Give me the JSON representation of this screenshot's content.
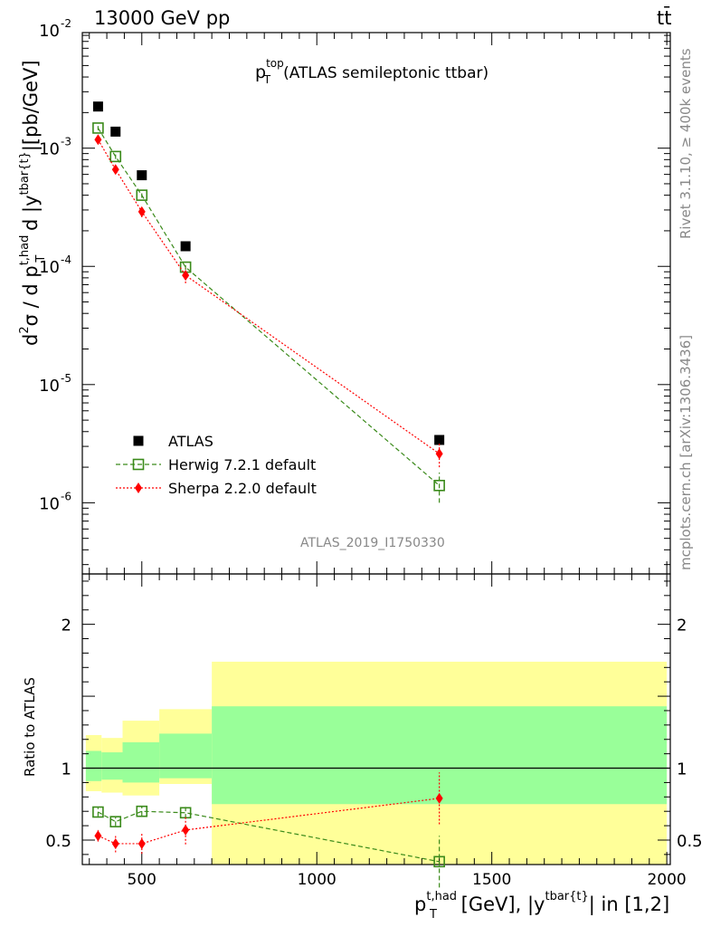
{
  "header": {
    "energy_label": "13000 GeV pp",
    "process_label": "tt̄"
  },
  "side_text": {
    "rivet": "Rivet 3.1.10, ≥ 400k events",
    "mcplots": "mcplots.cern.ch [arXiv:1306.3436]"
  },
  "chart_data": [
    {
      "type": "scatter",
      "title_main": "p",
      "title_sup": "top",
      "title_sub": "T",
      "title_rest": "(ATLAS semileptonic ttbar)",
      "analysis_label": "ATLAS_2019_I1750330",
      "yscale": "log",
      "ylim": [
        2.5e-07,
        0.0095
      ],
      "xlim": [
        330,
        2010
      ],
      "ytick_labels": [
        "10",
        "10",
        "10",
        "10",
        "10"
      ],
      "ytick_exponents": [
        "-6",
        "-5",
        "-4",
        "-3",
        "-2"
      ],
      "ylabel": {
        "d2": "d",
        "sup2": "2",
        "sigma_rest": "σ /  d p",
        "sup_thad": "t,had",
        "sub_T": "T",
        "mid": " d  |y",
        "sup_tbar": "tbar{t}",
        "end": "|[pb/GeV]"
      },
      "legend": {
        "position": "bottom-left",
        "entries": [
          "ATLAS",
          "Herwig 7.2.1 default",
          "Sherpa 2.2.0 default"
        ]
      },
      "series": [
        {
          "name": "ATLAS",
          "color": "#000000",
          "marker": "square",
          "x": [
            375,
            425,
            500,
            625,
            1350
          ],
          "y": [
            0.00225,
            0.00138,
            0.00059,
            0.000148,
            3.4e-06
          ]
        },
        {
          "name": "Herwig 7.2.1 default",
          "color": "#3a8a1a",
          "marker": "open-square",
          "x": [
            375,
            425,
            500,
            625,
            1350
          ],
          "y": [
            0.00148,
            0.00085,
            0.0004,
            9.85e-05,
            1.4e-06
          ],
          "yerr": [
            6e-05,
            4e-05,
            2e-05,
            5e-06,
            4e-07
          ]
        },
        {
          "name": "Sherpa 2.2.0 default",
          "color": "#ff0000",
          "marker": "diamond",
          "x": [
            375,
            425,
            500,
            625,
            1350
          ],
          "y": [
            0.00118,
            0.00066,
            0.00029,
            8.4e-05,
            2.6e-06
          ],
          "yerr": [
            8e-05,
            5e-05,
            3e-05,
            1.2e-05,
            6e-07
          ]
        }
      ]
    },
    {
      "type": "scatter",
      "ylabel": "Ratio to ATLAS",
      "xlabel": {
        "p": "p",
        "sup": "t,had",
        "sub": "T",
        "mid": " [GeV], |y",
        "sup2": "tbar{t}",
        "end": "| in [1,2]"
      },
      "xlim": [
        330,
        2010
      ],
      "ylim": [
        0.33,
        2.35
      ],
      "xtick_labels": [
        "500",
        "1000",
        "1500",
        "2000"
      ],
      "xtick_values": [
        500,
        1000,
        1500,
        2000
      ],
      "ytick_labels": [
        "0.5",
        "1",
        "2"
      ],
      "ytick_values": [
        0.5,
        1,
        2
      ],
      "bands": [
        {
          "x0": 340,
          "x1": 385,
          "yellow": [
            0.84,
            1.23
          ],
          "green": [
            0.91,
            1.12
          ]
        },
        {
          "x0": 385,
          "x1": 445,
          "yellow": [
            0.83,
            1.21
          ],
          "green": [
            0.92,
            1.11
          ]
        },
        {
          "x0": 445,
          "x1": 550,
          "yellow": [
            0.81,
            1.33
          ],
          "green": [
            0.9,
            1.18
          ]
        },
        {
          "x0": 550,
          "x1": 700,
          "yellow": [
            0.89,
            1.41
          ],
          "green": [
            0.93,
            1.24
          ]
        },
        {
          "x0": 700,
          "x1": 2000,
          "yellow": [
            0.33,
            1.74
          ],
          "green": [
            0.75,
            1.43
          ]
        }
      ],
      "series": [
        {
          "name": "Herwig 7.2.1 default",
          "color": "#3a8a1a",
          "marker": "open-square",
          "x": [
            375,
            425,
            500,
            625,
            1350
          ],
          "y": [
            0.695,
            0.628,
            0.7,
            0.69,
            0.35
          ],
          "yerr": [
            0.03,
            0.03,
            0.03,
            0.04,
            0.18
          ]
        },
        {
          "name": "Sherpa 2.2.0 default",
          "color": "#ff0000",
          "marker": "diamond",
          "x": [
            375,
            425,
            500,
            625,
            1350
          ],
          "y": [
            0.53,
            0.475,
            0.475,
            0.57,
            0.79
          ],
          "yerr": [
            0.04,
            0.06,
            0.07,
            0.1,
            0.18
          ]
        }
      ]
    }
  ]
}
